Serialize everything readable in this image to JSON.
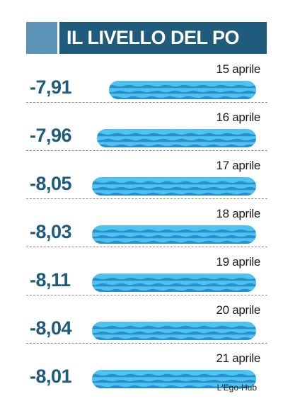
{
  "header": {
    "title": "IL LIVELLO DEL PO"
  },
  "chart_data": {
    "type": "bar",
    "orientation": "horizontal",
    "categories": [
      "15 aprile",
      "16 aprile",
      "17 aprile",
      "18 aprile",
      "19 aprile",
      "20 aprile",
      "21 aprile"
    ],
    "values": [
      -7.91,
      -7.96,
      -8.05,
      -8.03,
      -8.11,
      -8.04,
      -8.01
    ],
    "labels": [
      "-7,91",
      "-7,96",
      "-8,05",
      "-8,03",
      "-8,11",
      "-8,04",
      "-8,01"
    ],
    "title": "IL LIVELLO DEL PO",
    "xlabel": "",
    "ylabel": "",
    "grid": false
  },
  "colors": {
    "header_band": "#1f5b7c",
    "header_accent": "#5b93b7",
    "value_text": "#1f5b7c",
    "water_light": "#4fc2ee",
    "water_dark": "#1f86c7"
  },
  "source": "L'Ego-Hub"
}
